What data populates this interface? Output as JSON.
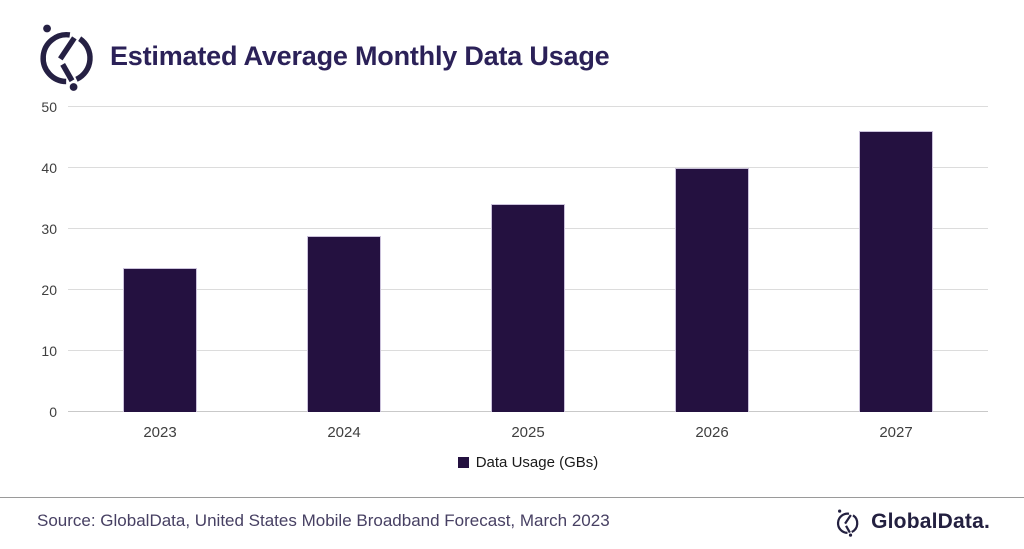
{
  "header": {
    "title": "Estimated Average Monthly Data Usage"
  },
  "chart_data": {
    "type": "bar",
    "title": "Estimated Average Monthly Data Usage",
    "categories": [
      "2023",
      "2024",
      "2025",
      "2026",
      "2027"
    ],
    "values": [
      23.6,
      28.8,
      34.1,
      40.0,
      46.1
    ],
    "series_name": "Data Usage (GBs)",
    "xlabel": "",
    "ylabel": "",
    "ylim": [
      0,
      50
    ],
    "yticks": [
      0,
      10,
      20,
      30,
      40,
      50
    ],
    "grid": true,
    "legend_position": "bottom",
    "bar_color": "#241140"
  },
  "legend": {
    "label": "Data Usage (GBs)"
  },
  "footer": {
    "source": "Source: GlobalData, United States Mobile Broadband Forecast, March 2023",
    "brand": "GlobalData."
  },
  "colors": {
    "bar": "#241140",
    "title_text": "#2B2158",
    "axis_text": "#3F3F3F",
    "gridline": "#DCDCDC",
    "source_text": "#474063",
    "brand_text": "#232040"
  }
}
